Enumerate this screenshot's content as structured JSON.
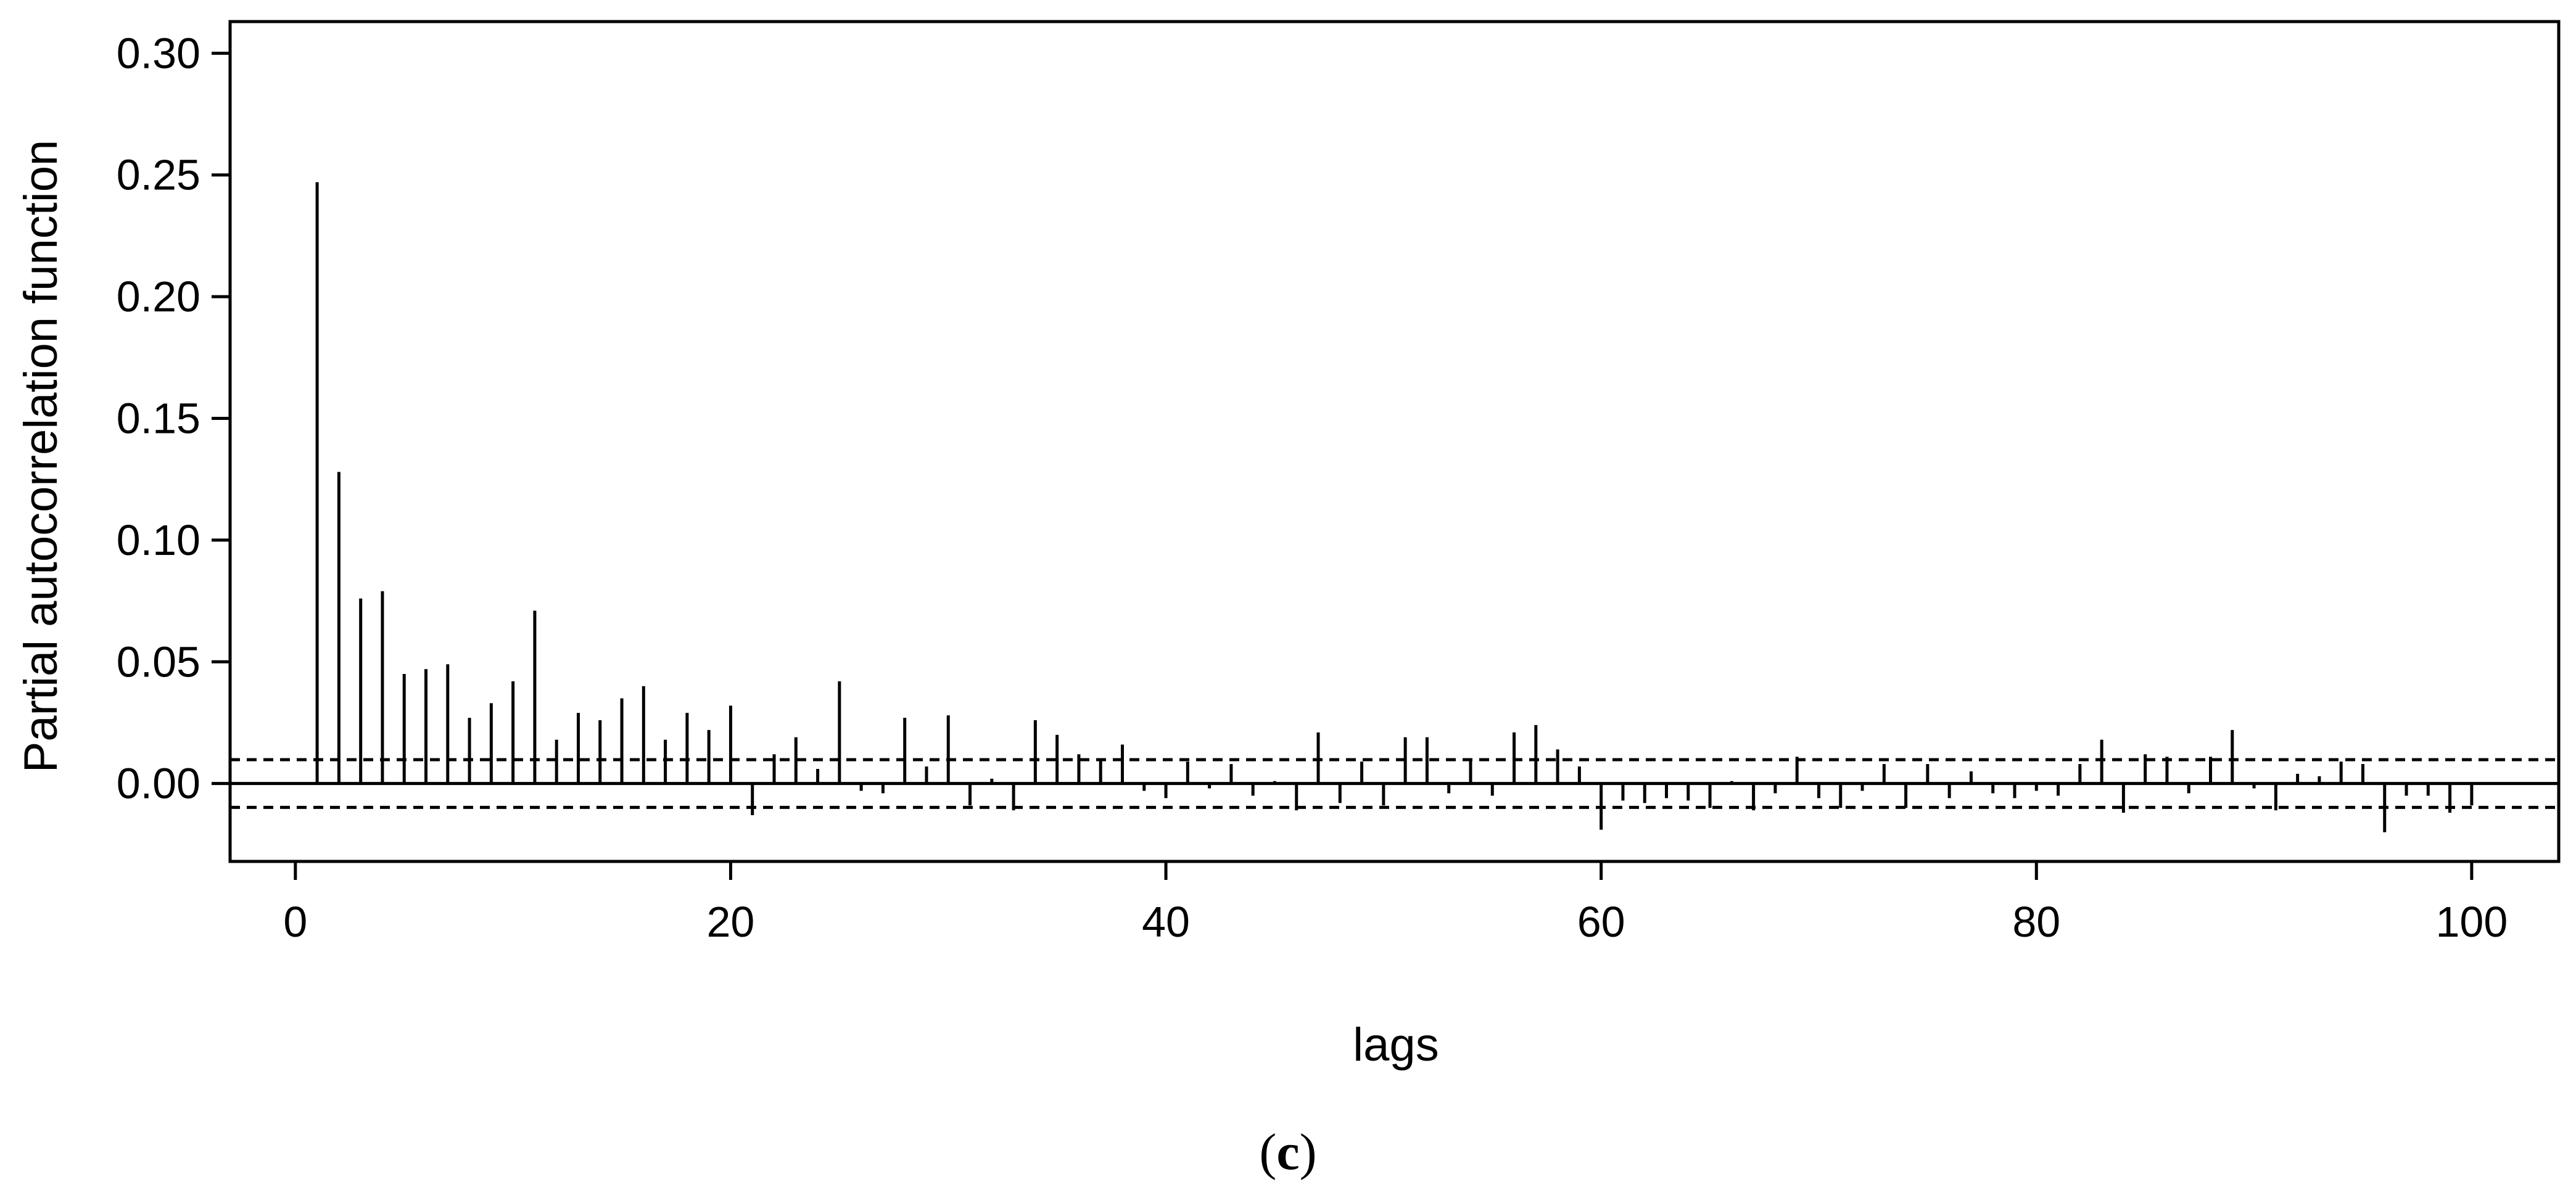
{
  "chart_data": {
    "type": "bar",
    "subtype": "stem",
    "ylabel": "Partial autocorrelation function",
    "xlabel": "lags",
    "panel_label": {
      "open": "(",
      "letter": "c",
      "close": ")"
    },
    "xlim": [
      -3,
      104
    ],
    "ylim": [
      -0.032,
      0.313
    ],
    "x_ticks": [
      0,
      20,
      40,
      60,
      80,
      100
    ],
    "x_tick_labels": [
      "0",
      "20",
      "40",
      "60",
      "80",
      "100"
    ],
    "y_ticks": [
      0.0,
      0.05,
      0.1,
      0.15,
      0.2,
      0.25,
      0.3
    ],
    "y_tick_labels": [
      "0.00",
      "0.05",
      "0.10",
      "0.15",
      "0.20",
      "0.25",
      "0.30"
    ],
    "confidence_band": [
      -0.0098,
      0.0098
    ],
    "zero_line": 0.0,
    "grid": false,
    "legend": "none",
    "colors": {
      "stem": "#000000",
      "axes": "#000000",
      "background": "#ffffff"
    },
    "lags": [
      1,
      2,
      3,
      4,
      5,
      6,
      7,
      8,
      9,
      10,
      11,
      12,
      13,
      14,
      15,
      16,
      17,
      18,
      19,
      20,
      21,
      22,
      23,
      24,
      25,
      26,
      27,
      28,
      29,
      30,
      31,
      32,
      33,
      34,
      35,
      36,
      37,
      38,
      39,
      40,
      41,
      42,
      43,
      44,
      45,
      46,
      47,
      48,
      49,
      50,
      51,
      52,
      53,
      54,
      55,
      56,
      57,
      58,
      59,
      60,
      61,
      62,
      63,
      64,
      65,
      66,
      67,
      68,
      69,
      70,
      71,
      72,
      73,
      74,
      75,
      76,
      77,
      78,
      79,
      80,
      81,
      82,
      83,
      84,
      85,
      86,
      87,
      88,
      89,
      90,
      91,
      92,
      93,
      94,
      95,
      96,
      97,
      98,
      99,
      100
    ],
    "values": [
      0.247,
      0.128,
      0.076,
      0.079,
      0.045,
      0.047,
      0.049,
      0.027,
      0.033,
      0.042,
      0.071,
      0.018,
      0.029,
      0.026,
      0.035,
      0.04,
      0.018,
      0.029,
      0.022,
      0.032,
      -0.013,
      0.012,
      0.019,
      0.006,
      0.042,
      -0.003,
      -0.004,
      0.027,
      0.007,
      0.028,
      -0.009,
      0.002,
      -0.011,
      0.026,
      0.02,
      0.012,
      0.01,
      0.016,
      -0.003,
      -0.006,
      0.009,
      -0.002,
      0.008,
      -0.005,
      0.001,
      -0.011,
      0.021,
      -0.008,
      0.009,
      -0.009,
      0.019,
      0.019,
      -0.004,
      0.01,
      -0.005,
      0.021,
      0.024,
      0.014,
      0.007,
      -0.019,
      -0.007,
      -0.008,
      -0.006,
      -0.007,
      -0.01,
      0.001,
      -0.011,
      -0.004,
      0.011,
      -0.006,
      -0.01,
      -0.003,
      0.008,
      -0.01,
      0.008,
      -0.006,
      0.005,
      -0.004,
      -0.006,
      -0.003,
      -0.005,
      0.008,
      0.018,
      -0.012,
      0.012,
      0.011,
      -0.004,
      0.011,
      0.022,
      -0.002,
      -0.011,
      0.004,
      0.003,
      0.009,
      0.008,
      -0.02,
      -0.005,
      -0.005,
      -0.012,
      -0.009
    ]
  }
}
